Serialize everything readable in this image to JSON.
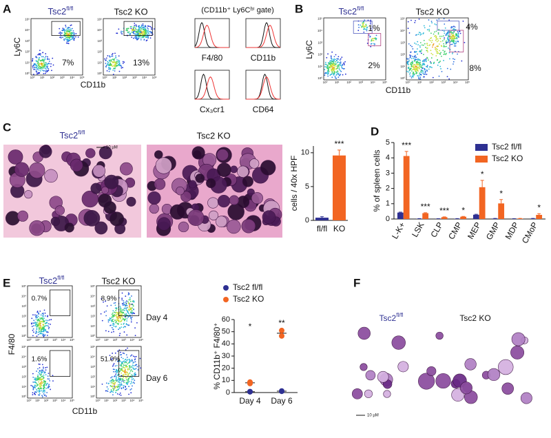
{
  "figure": {
    "panel_labels": [
      "A",
      "B",
      "C",
      "D",
      "E",
      "F"
    ],
    "genotype_ctrl": "Tsc2",
    "genotype_ctrl_sup": "fl/fl",
    "genotype_ko": "Tsc2 KO",
    "flow_ticks": [
      "10⁰",
      "10¹",
      "10²",
      "10³",
      "10⁴",
      "10⁵"
    ],
    "A": {
      "y_label": "Ly6C",
      "x_label": "CD11b",
      "percentages": [
        "7%",
        "13%"
      ],
      "gate_title": "(CD11b⁺ Ly6Cʰⁱ gate)",
      "histograms": [
        "F4/80",
        "CD11b",
        "Cx₃cr1",
        "CD64"
      ]
    },
    "B": {
      "y_label": "Ly6C",
      "x_label": "CD11b",
      "percentages": [
        [
          "1%",
          "2%"
        ],
        [
          "4%",
          "8%"
        ]
      ]
    },
    "C": {
      "scale_bar": "10 µM"
    },
    "E": {
      "y_label": "F4/80",
      "x_label": "CD11b",
      "days": [
        "Day 4",
        "Day 6"
      ],
      "percentages": [
        [
          "0.7%",
          "8.9%"
        ],
        [
          "1.6%",
          "51.0%"
        ]
      ]
    },
    "F": {
      "scale_bar": "10 µM"
    }
  },
  "chart_data": [
    {
      "type": "bar",
      "y_label": "cells / 40x HPF",
      "categories": [
        "fl/fl",
        "KO"
      ],
      "values": [
        0.4,
        9.6
      ],
      "errors": [
        0.15,
        0.8
      ],
      "colors": [
        "#2e3092",
        "#f26522"
      ],
      "significance": [
        null,
        "***"
      ],
      "ylim": [
        0,
        11
      ],
      "yticks": [
        0,
        5,
        10
      ]
    },
    {
      "type": "grouped_bar",
      "y_label": "% of spleen cells",
      "categories": [
        "L-K+",
        "LSK",
        "CLP",
        "CMP",
        "MEP",
        "GMP",
        "MDP",
        "CMoP"
      ],
      "series": [
        {
          "name": "Tsc2 fl/fl",
          "color": "#2e3092",
          "values": [
            0.42,
            0.02,
            0.01,
            0.02,
            0.28,
            0.03,
            0.01,
            0.03
          ],
          "errors": [
            0.03,
            0.01,
            0.01,
            0.01,
            0.03,
            0.01,
            0.01,
            0.01
          ]
        },
        {
          "name": "Tsc2 KO",
          "color": "#f26522",
          "values": [
            4.12,
            0.38,
            0.12,
            0.15,
            2.08,
            1.02,
            0.03,
            0.27
          ],
          "errors": [
            0.3,
            0.03,
            0.02,
            0.02,
            0.45,
            0.25,
            0.01,
            0.08
          ]
        }
      ],
      "significance": [
        "***",
        "***",
        "***",
        "*",
        "*",
        "*",
        null,
        "*"
      ],
      "ylim": [
        0,
        5
      ],
      "yticks": [
        0,
        1,
        2,
        3,
        4,
        5
      ],
      "legend": "upper right"
    },
    {
      "type": "dot_plot",
      "y_label": "% CD11b⁺ F4/80⁺",
      "categories": [
        "Day 4",
        "Day 6"
      ],
      "series": [
        {
          "name": "Tsc2 fl/fl",
          "color": "#2e3092",
          "values": [
            [
              0.6,
              0.8
            ],
            [
              1.0,
              1.3
            ]
          ]
        },
        {
          "name": "Tsc2 KO",
          "color": "#f26522",
          "values": [
            [
              7.4,
              8.6
            ],
            [
              46.5,
              51.0
            ]
          ]
        }
      ],
      "significance": [
        "*",
        "**"
      ],
      "ylim": [
        0,
        60
      ],
      "yticks": [
        0,
        10,
        20,
        30,
        40,
        50,
        60
      ],
      "legend": "upper left"
    }
  ]
}
